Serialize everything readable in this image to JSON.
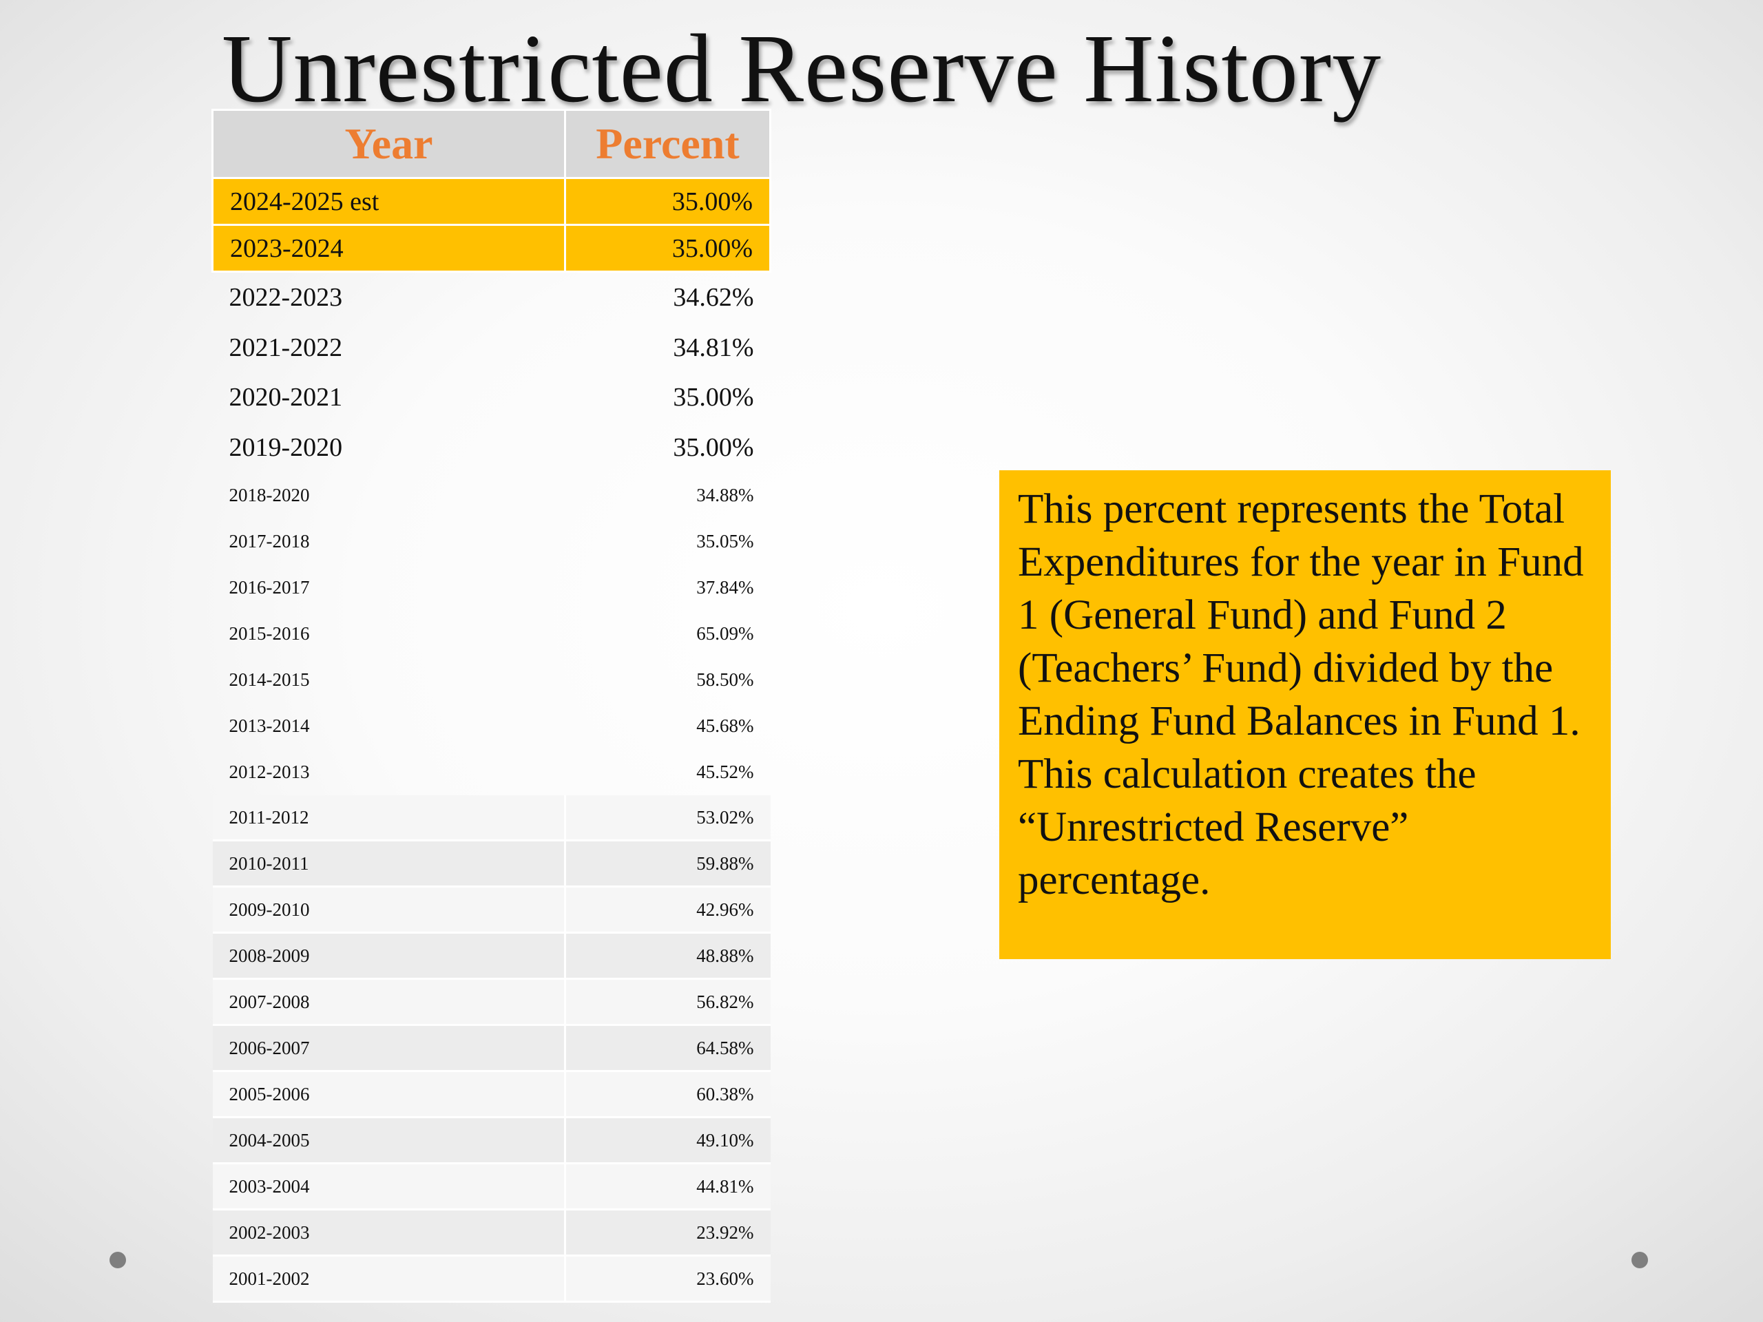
{
  "slide": {
    "title": "Unrestricted Reserve History",
    "accent_color": "#ffc000",
    "header_text_color": "#ed7d31"
  },
  "table": {
    "headers": {
      "year": "Year",
      "percent": "Percent"
    },
    "rows": [
      {
        "year": "2024-2025 est",
        "percent": "35.00%"
      },
      {
        "year": "2023-2024",
        "percent": "35.00%"
      },
      {
        "year": "2022-2023",
        "percent": "34.62%"
      },
      {
        "year": "2021-2022",
        "percent": "34.81%"
      },
      {
        "year": "2020-2021",
        "percent": "35.00%"
      },
      {
        "year": "2019-2020",
        "percent": "35.00%"
      },
      {
        "year": "2018-2020",
        "percent": "34.88%"
      },
      {
        "year": "2017-2018",
        "percent": "35.05%"
      },
      {
        "year": "2016-2017",
        "percent": "37.84%"
      },
      {
        "year": "2015-2016",
        "percent": "65.09%"
      },
      {
        "year": "2014-2015",
        "percent": "58.50%"
      },
      {
        "year": "2013-2014",
        "percent": "45.68%"
      },
      {
        "year": "2012-2013",
        "percent": "45.52%"
      },
      {
        "year": "2011-2012",
        "percent": "53.02%"
      },
      {
        "year": "2010-2011",
        "percent": "59.88%"
      },
      {
        "year": "2009-2010",
        "percent": "42.96%"
      },
      {
        "year": "2008-2009",
        "percent": "48.88%"
      },
      {
        "year": "2007-2008",
        "percent": "56.82%"
      },
      {
        "year": "2006-2007",
        "percent": "64.58%"
      },
      {
        "year": "2005-2006",
        "percent": "60.38%"
      },
      {
        "year": "2004-2005",
        "percent": "49.10%"
      },
      {
        "year": "2003-2004",
        "percent": "44.81%"
      },
      {
        "year": "2002-2003",
        "percent": "23.92%"
      },
      {
        "year": "2001-2002",
        "percent": "23.60%"
      }
    ]
  },
  "note": {
    "text": "This percent represents the Total Expenditures for the year in Fund 1 (General Fund) and Fund 2 (Teachers’ Fund) divided by the Ending Fund Balances in Fund 1.  This calculation creates the “Unrestricted Reserve” percentage."
  }
}
